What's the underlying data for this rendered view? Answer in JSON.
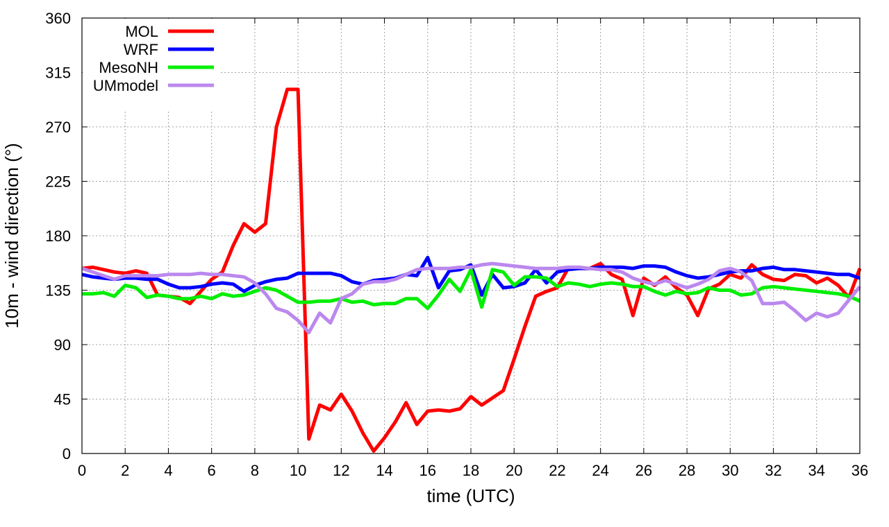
{
  "chart_data": {
    "type": "line",
    "xlabel": "time (UTC)",
    "ylabel": "10m - wind direction (°)",
    "xlim": [
      0,
      36
    ],
    "ylim": [
      0,
      360
    ],
    "xticks": [
      0,
      2,
      4,
      6,
      8,
      10,
      12,
      14,
      16,
      18,
      20,
      22,
      24,
      26,
      28,
      30,
      32,
      34,
      36
    ],
    "yticks": [
      0,
      45,
      90,
      135,
      180,
      225,
      270,
      315,
      360
    ],
    "grid": true,
    "legend_position": "top-left",
    "series": [
      {
        "name": "MOL",
        "color": "#ff0000",
        "x": [
          0,
          0.5,
          1,
          1.5,
          2,
          2.5,
          3,
          3.5,
          4,
          4.5,
          5,
          5.5,
          6,
          6.5,
          7,
          7.5,
          8,
          8.5,
          9,
          9.5,
          10,
          10.5,
          11,
          11.5,
          12,
          12.5,
          13,
          13.5,
          14,
          14.5,
          15,
          15.5,
          16,
          16.5,
          17,
          17.5,
          18,
          18.5,
          19,
          19.5,
          20,
          20.5,
          21,
          21.5,
          22,
          22.5,
          23,
          23.5,
          24,
          24.5,
          25,
          25.5,
          26,
          26.5,
          27,
          27.5,
          28,
          28.5,
          29,
          29.5,
          30,
          30.5,
          31,
          31.5,
          32,
          32.5,
          33,
          33.5,
          34,
          34.5,
          35,
          35.5,
          36
        ],
        "y": [
          153,
          154,
          152,
          150,
          149,
          151,
          149,
          131,
          130,
          129,
          124,
          134,
          144,
          150,
          172,
          190,
          183,
          190,
          270,
          301,
          301,
          12,
          40,
          36,
          49,
          35,
          17,
          2,
          13,
          26,
          42,
          24,
          35,
          36,
          35,
          37,
          47,
          40,
          46,
          52,
          78,
          105,
          130,
          134,
          137,
          153,
          153,
          153,
          157,
          148,
          144,
          114,
          145,
          139,
          146,
          137,
          131,
          114,
          136,
          140,
          148,
          145,
          156,
          148,
          144,
          143,
          148,
          147,
          141,
          145,
          139,
          129,
          153
        ]
      },
      {
        "name": "WRF",
        "color": "#0000ff",
        "x": [
          0,
          0.5,
          1,
          1.5,
          2,
          2.5,
          3,
          3.5,
          4,
          4.5,
          5,
          5.5,
          6,
          6.5,
          7,
          7.5,
          8,
          8.5,
          9,
          9.5,
          10,
          10.5,
          11,
          11.5,
          12,
          12.5,
          13,
          13.5,
          14,
          14.5,
          15,
          15.5,
          16,
          16.5,
          17,
          17.5,
          18,
          18.5,
          19,
          19.5,
          20,
          20.5,
          21,
          21.5,
          22,
          22.5,
          23,
          23.5,
          24,
          24.5,
          25,
          25.5,
          26,
          26.5,
          27,
          27.5,
          28,
          28.5,
          29,
          29.5,
          30,
          30.5,
          31,
          31.5,
          32,
          32.5,
          33,
          33.5,
          34,
          34.5,
          35,
          35.5,
          36
        ],
        "y": [
          148,
          146,
          145,
          144,
          145,
          145,
          144,
          144,
          140,
          137,
          137,
          138,
          140,
          141,
          140,
          134,
          139,
          142,
          144,
          145,
          149,
          149,
          149,
          149,
          147,
          142,
          140,
          143,
          144,
          145,
          148,
          147,
          162,
          137,
          151,
          152,
          156,
          131,
          148,
          137,
          138,
          141,
          152,
          141,
          150,
          152,
          153,
          153,
          154,
          154,
          154,
          153,
          155,
          155,
          154,
          150,
          147,
          145,
          146,
          148,
          150,
          151,
          151,
          153,
          154,
          152,
          152,
          151,
          150,
          149,
          148,
          148,
          145
        ]
      },
      {
        "name": "MesoNH",
        "color": "#00ee00",
        "x": [
          0,
          0.5,
          1,
          1.5,
          2,
          2.5,
          3,
          3.5,
          4,
          4.5,
          5,
          5.5,
          6,
          6.5,
          7,
          7.5,
          8,
          8.5,
          9,
          9.5,
          10,
          10.5,
          11,
          11.5,
          12,
          12.5,
          13,
          13.5,
          14,
          14.5,
          15,
          15.5,
          16,
          16.5,
          17,
          17.5,
          18,
          18.5,
          19,
          19.5,
          20,
          20.5,
          21,
          21.5,
          22,
          22.5,
          23,
          23.5,
          24,
          24.5,
          25,
          25.5,
          26,
          26.5,
          27,
          27.5,
          28,
          28.5,
          29,
          29.5,
          30,
          30.5,
          31,
          31.5,
          32,
          32.5,
          33,
          33.5,
          34,
          34.5,
          35,
          35.5,
          36
        ],
        "y": [
          132,
          132,
          133,
          130,
          139,
          137,
          129,
          131,
          130,
          128,
          128,
          130,
          128,
          132,
          130,
          131,
          134,
          137,
          135,
          130,
          125,
          125,
          126,
          126,
          128,
          125,
          126,
          123,
          124,
          124,
          128,
          128,
          120,
          131,
          144,
          134,
          152,
          121,
          152,
          150,
          139,
          146,
          146,
          145,
          138,
          141,
          140,
          138,
          140,
          141,
          140,
          138,
          138,
          134,
          131,
          134,
          132,
          133,
          137,
          135,
          135,
          131,
          132,
          137,
          138,
          137,
          136,
          135,
          134,
          133,
          132,
          130,
          126
        ]
      },
      {
        "name": "UMmodel",
        "color": "#bb88ee",
        "x": [
          0,
          0.5,
          1,
          1.5,
          2,
          2.5,
          3,
          3.5,
          4,
          4.5,
          5,
          5.5,
          6,
          6.5,
          7,
          7.5,
          8,
          8.5,
          9,
          9.5,
          10,
          10.5,
          11,
          11.5,
          12,
          12.5,
          13,
          13.5,
          14,
          14.5,
          15,
          15.5,
          16,
          16.5,
          17,
          17.5,
          18,
          18.5,
          19,
          19.5,
          20,
          20.5,
          21,
          21.5,
          22,
          22.5,
          23,
          23.5,
          24,
          24.5,
          25,
          25.5,
          26,
          26.5,
          27,
          27.5,
          28,
          28.5,
          29,
          29.5,
          30,
          30.5,
          31,
          31.5,
          32,
          32.5,
          33,
          33.5,
          34,
          34.5,
          35,
          35.5,
          36
        ],
        "y": [
          153,
          150,
          147,
          144,
          147,
          147,
          147,
          147,
          148,
          148,
          148,
          149,
          148,
          148,
          147,
          146,
          141,
          132,
          120,
          117,
          110,
          100,
          116,
          108,
          128,
          132,
          140,
          142,
          142,
          144,
          148,
          152,
          153,
          153,
          153,
          154,
          154,
          156,
          157,
          156,
          155,
          154,
          153,
          153,
          153,
          154,
          154,
          153,
          152,
          152,
          150,
          145,
          142,
          140,
          143,
          140,
          137,
          140,
          144,
          151,
          153,
          150,
          143,
          124,
          124,
          125,
          118,
          110,
          116,
          113,
          116,
          127,
          138
        ]
      }
    ]
  }
}
